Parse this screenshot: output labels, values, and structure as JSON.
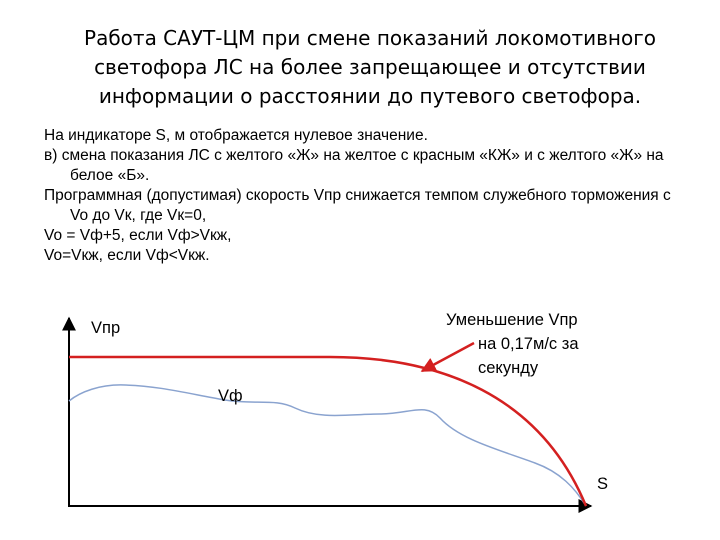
{
  "slide": {
    "title_lines": [
      "Работа САУТ-ЦМ при смене показаний локомотивного",
      "светофора ЛС на более запрещающее и отсутствии",
      "информации о расстоянии до путевого светофора."
    ],
    "paragraphs": [
      "На индикаторе S, м отображается нулевое значение.",
      "в) смена показания ЛС с желтого «Ж» на желтое с красным «КЖ» и с желтого «Ж» на белое «Б».",
      "Программная (допустимая) скорость Vпр снижается темпом служебного торможения с Vo до Vк, где Vк=0,",
      "Vo = Vф+5, если Vф>Vкж,",
      "Vo=Vкж, если Vф<Vкж."
    ]
  },
  "diagram": {
    "y_axis_label": "Vпр",
    "x_axis_label": "S",
    "actual_speed_label": "Vф",
    "callout_lines": [
      "Уменьшение Vпр",
      "на 0,17м/с за",
      "секунду"
    ],
    "colors": {
      "permitted_speed": "#d42020",
      "actual_speed": "#8aa3cf",
      "axis": "#000000",
      "arrow": "#d42020"
    }
  }
}
